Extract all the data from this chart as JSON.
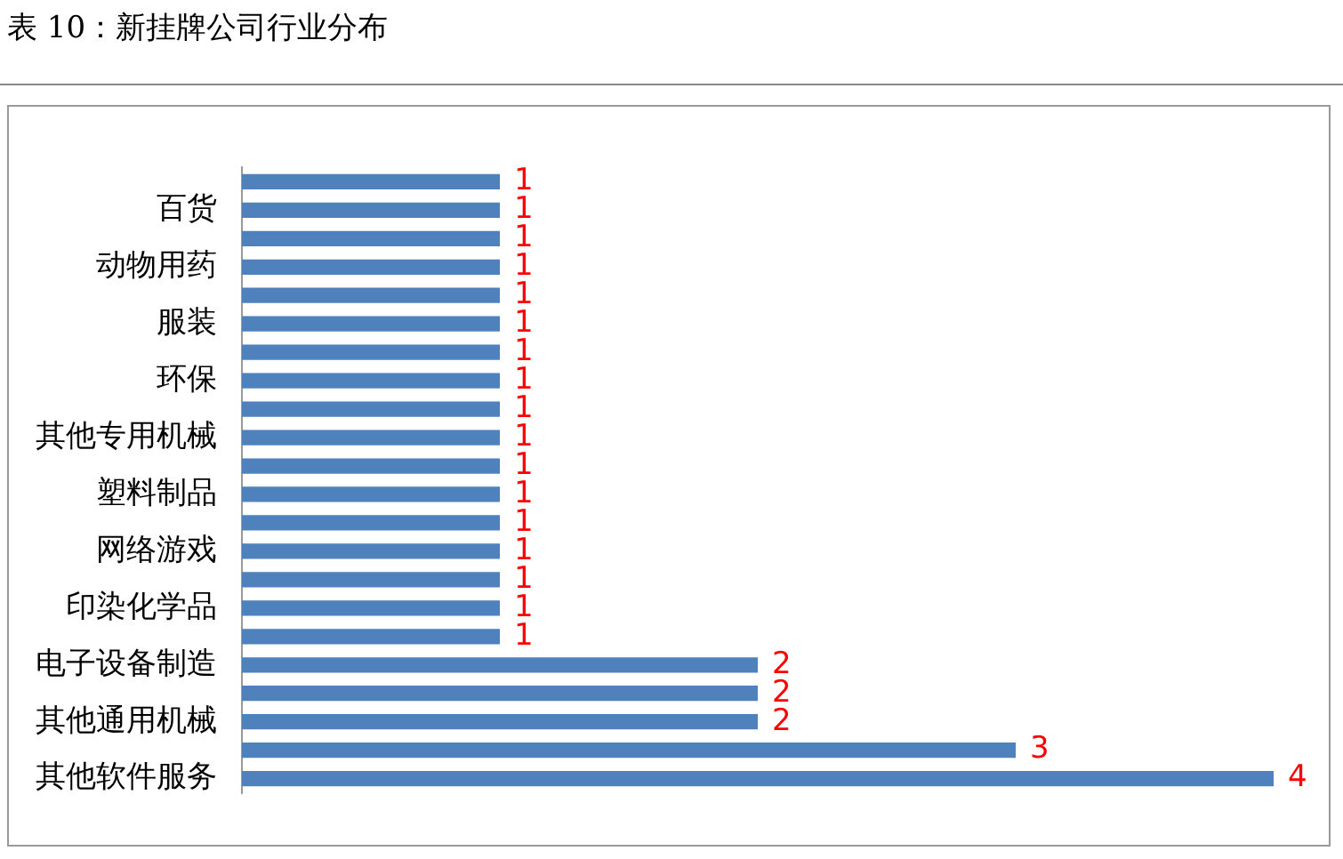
{
  "chart_data": {
    "type": "bar",
    "orientation": "horizontal",
    "title": "表 10：新挂牌公司行业分布",
    "categories": [
      null,
      "百货",
      null,
      "动物用药",
      null,
      "服装",
      null,
      "环保",
      null,
      "其他专用机械",
      null,
      "塑料制品",
      null,
      "网络游戏",
      null,
      "印染化学品",
      null,
      "电子设备制造",
      null,
      "其他通用机械",
      null,
      "其他软件服务"
    ],
    "values": [
      1,
      1,
      1,
      1,
      1,
      1,
      1,
      1,
      1,
      1,
      1,
      1,
      1,
      1,
      1,
      1,
      1,
      2,
      2,
      2,
      3,
      4
    ],
    "color": "#4f81bd",
    "data_labels": true,
    "grid": false,
    "legend": false
  }
}
